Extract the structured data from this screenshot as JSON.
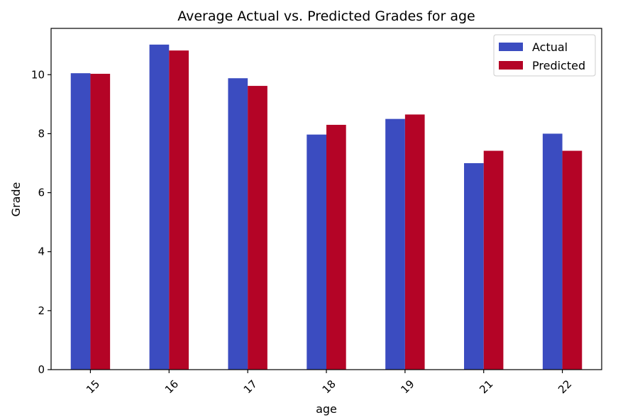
{
  "chart_data": {
    "type": "bar",
    "title": "Average Actual vs. Predicted Grades for age",
    "xlabel": "age",
    "ylabel": "Grade",
    "categories": [
      "15",
      "16",
      "17",
      "18",
      "19",
      "21",
      "22"
    ],
    "series": [
      {
        "name": "Actual",
        "color": "#3b4cc0",
        "values": [
          10.05,
          11.02,
          9.88,
          7.97,
          8.5,
          7.0,
          8.0
        ]
      },
      {
        "name": "Predicted",
        "color": "#b40426",
        "values": [
          10.03,
          10.82,
          9.62,
          8.3,
          8.65,
          7.42,
          7.42
        ]
      }
    ],
    "ylim": [
      0,
      11.57
    ],
    "yticks": [
      0,
      2,
      4,
      6,
      8,
      10
    ],
    "grid": false,
    "legend_position": "top-right",
    "xtick_rotation": -45
  }
}
